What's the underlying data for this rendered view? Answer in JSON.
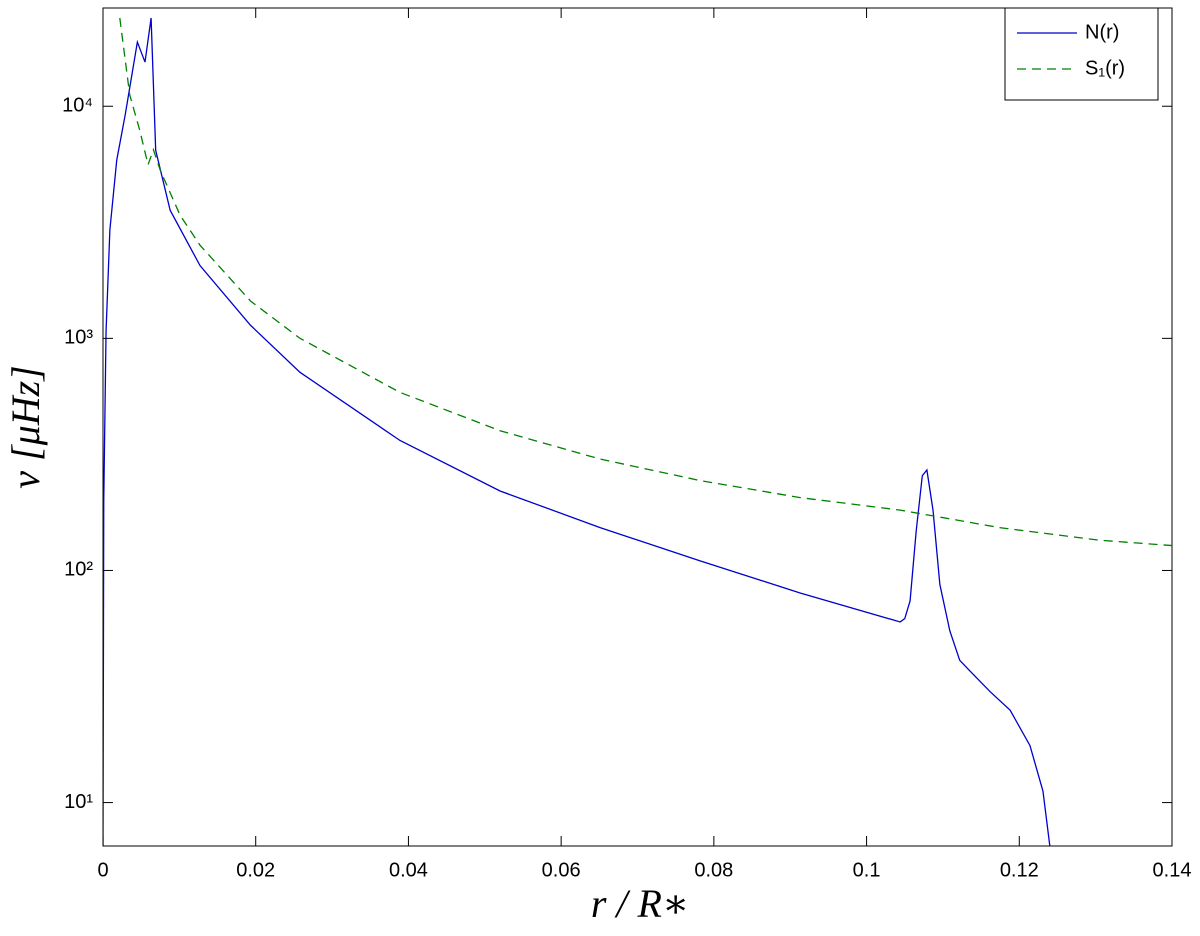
{
  "chart_data": {
    "type": "line",
    "xlabel": "r / R∗",
    "ylabel": "ν [μHz]",
    "xlim": [
      0,
      0.14
    ],
    "ylim": [
      6.5,
      26500
    ],
    "log_y": true,
    "xticks": [
      0,
      0.02,
      0.04,
      0.06,
      0.08,
      0.1,
      0.12,
      0.14
    ],
    "yticks": [
      {
        "value": 10,
        "label": "10¹"
      },
      {
        "value": 100,
        "label": "10²"
      },
      {
        "value": 1000,
        "label": "10³"
      },
      {
        "value": 10000,
        "label": "10⁴"
      }
    ],
    "legend": "upper right",
    "series": [
      {
        "name": "N(r)",
        "color": "#0000cc",
        "style": "solid",
        "x": [
          0,
          0.0001,
          0.0004,
          0.0009,
          0.0018,
          0.0029,
          0.0045,
          0.0055,
          0.0063,
          0.0069,
          0.0088,
          0.0127,
          0.0193,
          0.0258,
          0.0389,
          0.052,
          0.0651,
          0.0782,
          0.0913,
          0.1044,
          0.105,
          0.1057,
          0.1065,
          0.1073,
          0.1079,
          0.1087,
          0.1096,
          0.1109,
          0.1122,
          0.1135,
          0.1162,
          0.1188,
          0.1214,
          0.1231,
          0.124
        ],
        "values": [
          6.5,
          200,
          1070,
          2930,
          5860,
          9150,
          18900,
          15500,
          24000,
          6460,
          3560,
          2060,
          1140,
          714,
          363,
          220,
          153,
          110,
          80,
          60,
          62,
          74,
          148,
          256,
          271,
          182,
          87,
          55,
          41,
          37,
          30,
          25,
          17.6,
          11.2,
          6.5
        ]
      },
      {
        "name": "S₁(r)",
        "color": "#008000",
        "style": "dashed",
        "x": [
          0.0022,
          0.0035,
          0.0048,
          0.0059,
          0.0066,
          0.0075,
          0.0101,
          0.0127,
          0.0193,
          0.0258,
          0.0389,
          0.052,
          0.0651,
          0.0782,
          0.0913,
          0.1044,
          0.1174,
          0.1305,
          0.14
        ],
        "values": [
          24000,
          11200,
          7900,
          5600,
          6500,
          5300,
          3390,
          2520,
          1450,
          1000,
          585,
          400,
          302,
          244,
          206,
          182,
          153,
          135,
          128
        ]
      }
    ]
  }
}
